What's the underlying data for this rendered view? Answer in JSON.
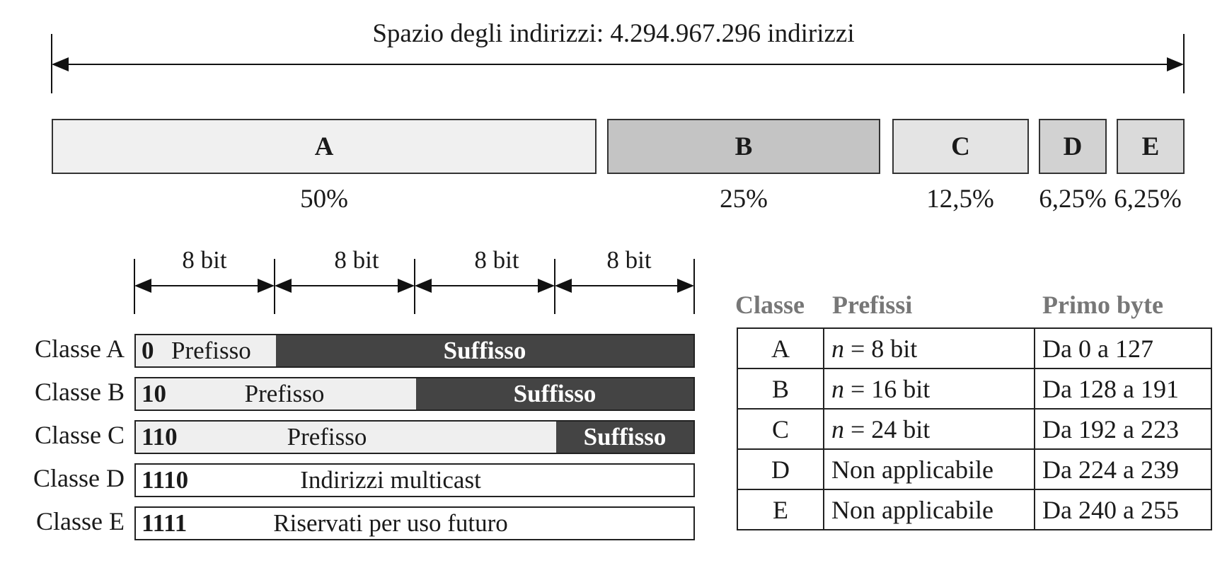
{
  "address_space": {
    "title": "Spazio degli indirizzi: 4.294.967.296 indirizzi",
    "segments": [
      {
        "label": "A",
        "share": 50,
        "percent_label": "50%",
        "fill": "#f0f0f0"
      },
      {
        "label": "B",
        "share": 25,
        "percent_label": "25%",
        "fill": "#c4c4c4"
      },
      {
        "label": "C",
        "share": 12.5,
        "percent_label": "12,5%",
        "fill": "#e4e4e4"
      },
      {
        "label": "D",
        "share": 6.25,
        "percent_label": "6,25%",
        "fill": "#d2d2d2"
      },
      {
        "label": "E",
        "share": 6.25,
        "percent_label": "6,25%",
        "fill": "#dadada"
      }
    ]
  },
  "bit_fields": [
    "8 bit",
    "8 bit",
    "8 bit",
    "8 bit"
  ],
  "classes": [
    {
      "name": "Classe A",
      "bits": "0",
      "prefix": "Prefisso",
      "suffix": "Suffisso"
    },
    {
      "name": "Classe B",
      "bits": "10",
      "prefix": "Prefisso",
      "suffix": "Suffisso"
    },
    {
      "name": "Classe C",
      "bits": "110",
      "prefix": "Prefisso",
      "suffix": "Suffisso"
    },
    {
      "name": "Classe D",
      "bits": "1110",
      "text": "Indirizzi multicast"
    },
    {
      "name": "Classe E",
      "bits": "1111",
      "text": "Riservati per uso futuro"
    }
  ],
  "table": {
    "headers": [
      "Classe",
      "Prefissi",
      "Primo byte"
    ],
    "rows": [
      {
        "classe": "A",
        "prefix_var": "n",
        "prefix_rest": " = 8 bit",
        "first_byte": "Da 0 a 127"
      },
      {
        "classe": "B",
        "prefix_var": "n",
        "prefix_rest": " = 16 bit",
        "first_byte": "Da 128 a 191"
      },
      {
        "classe": "C",
        "prefix_var": "n",
        "prefix_rest": " = 24 bit",
        "first_byte": "Da 192 a 223"
      },
      {
        "classe": "D",
        "prefix_var": "",
        "prefix_rest": "Non applicabile",
        "first_byte": "Da 224 a 239"
      },
      {
        "classe": "E",
        "prefix_var": "",
        "prefix_rest": "Non applicabile",
        "first_byte": "Da 240 a 255"
      }
    ]
  }
}
